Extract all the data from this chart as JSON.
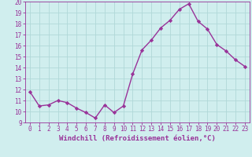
{
  "x": [
    0,
    1,
    2,
    3,
    4,
    5,
    6,
    7,
    8,
    9,
    10,
    11,
    12,
    13,
    14,
    15,
    16,
    17,
    18,
    19,
    20,
    21,
    22,
    23
  ],
  "y": [
    11.8,
    10.5,
    10.6,
    11.0,
    10.8,
    10.3,
    9.9,
    9.4,
    10.6,
    9.9,
    10.5,
    13.4,
    15.6,
    16.5,
    17.6,
    18.3,
    19.3,
    19.8,
    18.2,
    17.5,
    16.1,
    15.5,
    14.7,
    14.1
  ],
  "line_color": "#993399",
  "marker": "D",
  "marker_size": 2.2,
  "line_width": 1.0,
  "background_color": "#d0eeee",
  "grid_color": "#b0d8d8",
  "xlabel": "Windchill (Refroidissement éolien,°C)",
  "xlabel_color": "#993399",
  "tick_color": "#993399",
  "xlim": [
    -0.5,
    23.5
  ],
  "ylim": [
    9,
    20
  ],
  "yticks": [
    9,
    10,
    11,
    12,
    13,
    14,
    15,
    16,
    17,
    18,
    19,
    20
  ],
  "xticks": [
    0,
    1,
    2,
    3,
    4,
    5,
    6,
    7,
    8,
    9,
    10,
    11,
    12,
    13,
    14,
    15,
    16,
    17,
    18,
    19,
    20,
    21,
    22,
    23
  ],
  "tick_fontsize": 5.5,
  "xlabel_fontsize": 6.5
}
